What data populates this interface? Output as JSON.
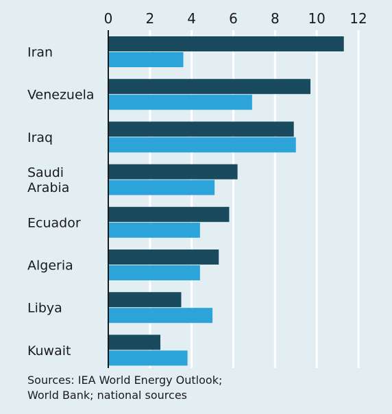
{
  "chart_data": {
    "type": "bar",
    "orientation": "horizontal",
    "categories": [
      "Iran",
      "Venezuela",
      "Iraq",
      "Saudi Arabia",
      "Ecuador",
      "Algeria",
      "Libya",
      "Kuwait"
    ],
    "category_lines": [
      [
        "Iran"
      ],
      [
        "Venezuela"
      ],
      [
        "Iraq"
      ],
      [
        "Saudi",
        "Arabia"
      ],
      [
        "Ecuador"
      ],
      [
        "Algeria"
      ],
      [
        "Libya"
      ],
      [
        "Kuwait"
      ]
    ],
    "series": [
      {
        "values": [
          11.3,
          9.7,
          8.9,
          6.2,
          5.8,
          5.3,
          3.5,
          2.5
        ],
        "color": "#1a4a5e"
      },
      {
        "values": [
          3.6,
          6.9,
          9.0,
          5.1,
          4.4,
          4.4,
          5.0,
          3.8
        ],
        "color": "#2ca3d9"
      }
    ],
    "xlim": [
      0,
      12
    ],
    "xticks": [
      0,
      2,
      4,
      6,
      8,
      10,
      12
    ],
    "grid": true,
    "axis_position": "top",
    "title": "",
    "xlabel": "",
    "ylabel": ""
  },
  "sources": {
    "line1": "Sources: IEA World Energy Outlook;",
    "line2": "World Bank; national sources"
  }
}
